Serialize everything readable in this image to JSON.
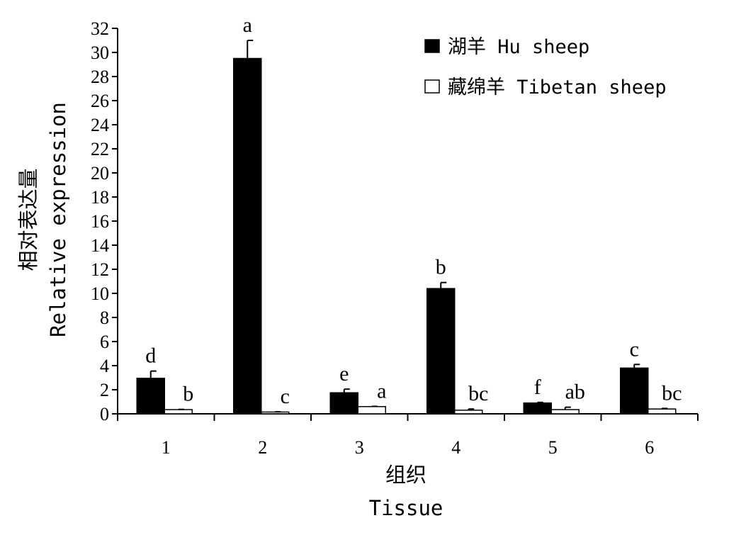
{
  "chart_data": {
    "type": "bar",
    "categories": [
      "1",
      "2",
      "3",
      "4",
      "5",
      "6"
    ],
    "series": [
      {
        "name": "湖羊 Hu sheep",
        "color": "#000000",
        "values": [
          2.95,
          29.5,
          1.75,
          10.4,
          0.9,
          3.8
        ],
        "errors": [
          0.6,
          1.5,
          0.3,
          0.5,
          0.05,
          0.3
        ],
        "sig": [
          "d",
          "a",
          "e",
          "b",
          "f",
          "c"
        ]
      },
      {
        "name": "藏绵羊 Tibetan sheep",
        "color": "#ffffff",
        "values": [
          0.35,
          0.15,
          0.6,
          0.3,
          0.35,
          0.4
        ],
        "errors": [
          0.02,
          0.02,
          0.02,
          0.1,
          0.2,
          0.05
        ],
        "sig": [
          "b",
          "c",
          "a",
          "bc",
          "ab",
          "bc"
        ]
      }
    ],
    "ylabel_cn": "相对表达量",
    "ylabel_en": "Relative expression",
    "xlabel_cn": "组织",
    "xlabel_en": "Tissue",
    "ylim": [
      0,
      32
    ],
    "ytick_step": 2,
    "grid": false,
    "legend_position": "top-right"
  }
}
